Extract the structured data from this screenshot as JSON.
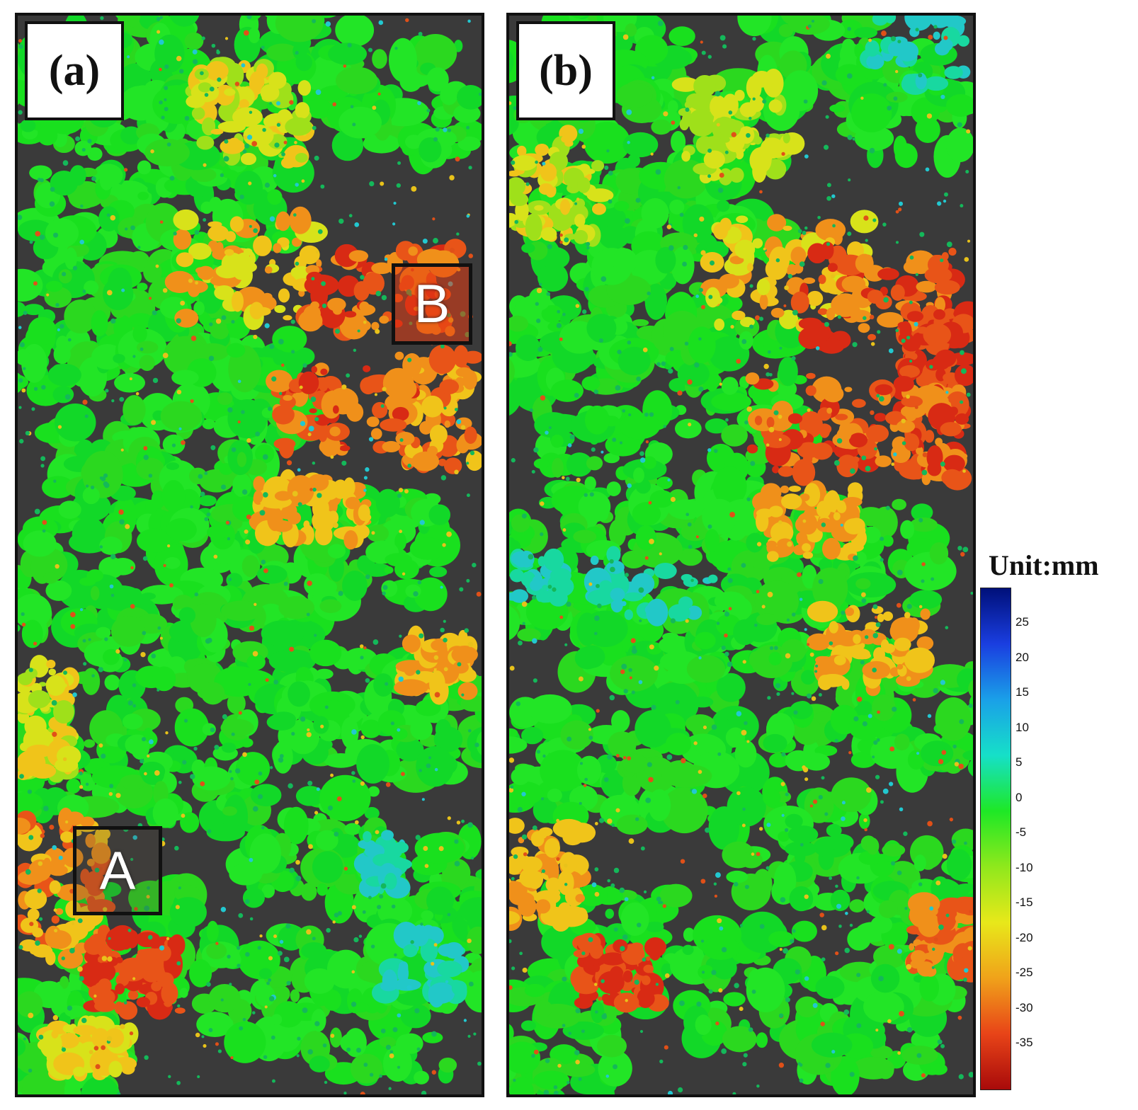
{
  "panels": [
    {
      "label": "(a)",
      "markers": [
        {
          "label": "B"
        },
        {
          "label": "A"
        }
      ]
    },
    {
      "label": "(b)",
      "markers": []
    }
  ],
  "colorbar": {
    "unit_label": "Unit:mm",
    "ticks": [
      "25",
      "20",
      "15",
      "10",
      "5",
      "0",
      "-5",
      "-10",
      "-15",
      "-20",
      "-25",
      "-30",
      "-35"
    ],
    "colors": [
      "#00107a",
      "#1a3ee0",
      "#1aa0e8",
      "#16e0c8",
      "#1ee826",
      "#8fe81c",
      "#e8e81a",
      "#f0a21a",
      "#e84418",
      "#a80a0a"
    ]
  }
}
